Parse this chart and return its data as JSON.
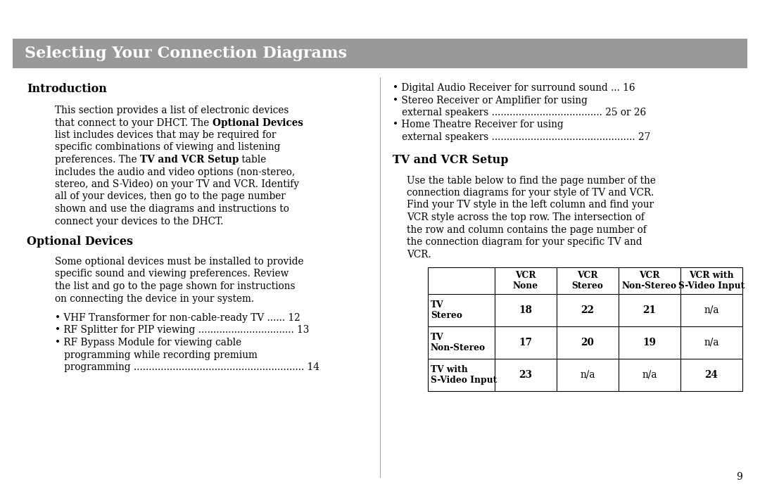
{
  "title": "Selecting Your Connection Diagrams",
  "title_bg": "#999999",
  "title_color": "#ffffff",
  "page_bg": "#ffffff",
  "page_number": "9",
  "intro_heading": "Introduction",
  "optional_heading": "Optional Devices",
  "tv_vcr_heading": "TV and VCR Setup",
  "intro_lines": [
    [
      [
        "This section provides a list of electronic devices",
        false
      ]
    ],
    [
      [
        "that connect to your DHCT. The ",
        false
      ],
      [
        "Optional Devices",
        true
      ]
    ],
    [
      [
        "list includes devices that may be required for",
        false
      ]
    ],
    [
      [
        "specific combinations of viewing and listening",
        false
      ]
    ],
    [
      [
        "preferences. The ",
        false
      ],
      [
        "TV and VCR Setup",
        true
      ],
      [
        " table",
        false
      ]
    ],
    [
      [
        "includes the audio and video options (non-stereo,",
        false
      ]
    ],
    [
      [
        "stereo, and S-Video) on your TV and VCR. Identify",
        false
      ]
    ],
    [
      [
        "all of your devices, then go to the page number",
        false
      ]
    ],
    [
      [
        "shown and use the diagrams and instructions to",
        false
      ]
    ],
    [
      [
        "connect your devices to the DHCT.",
        false
      ]
    ]
  ],
  "optional_body_lines": [
    "Some optional devices must be installed to provide",
    "specific sound and viewing preferences. Review",
    "the list and go to the page shown for instructions",
    "on connecting the device in your system."
  ],
  "left_bullets": [
    [
      "• VHF Transformer for non-cable-ready TV ...... 12"
    ],
    [
      "• RF Splitter for PIP viewing ................................ 13"
    ],
    [
      "• RF Bypass Module for viewing cable"
    ],
    [
      "   programming while recording premium"
    ],
    [
      "   programming ......................................................... 14"
    ]
  ],
  "right_bullets": [
    "• Digital Audio Receiver for surround sound ... 16",
    "• Stereo Receiver or Amplifier for using",
    "   external speakers ..................................... 25 or 26",
    "• Home Theatre Receiver for using",
    "   external speakers ................................................ 27"
  ],
  "tv_vcr_body_lines": [
    "Use the table below to find the page number of the",
    "connection diagrams for your style of TV and VCR.",
    "Find your TV style in the left column and find your",
    "VCR style across the top row. The intersection of",
    "the row and column contains the page number of",
    "the connection diagram for your specific TV and",
    "VCR."
  ],
  "table_col_headers": [
    "VCR\nNone",
    "VCR\nStereo",
    "VCR\nNon-Stereo",
    "VCR with\nS-Video Input"
  ],
  "table_row_headers": [
    "TV\nStereo",
    "TV\nNon-Stereo",
    "TV with\nS-Video Input"
  ],
  "table_data": [
    [
      "18",
      "22",
      "21",
      "n/a"
    ],
    [
      "17",
      "20",
      "19",
      "n/a"
    ],
    [
      "23",
      "n/a",
      "n/a",
      "24"
    ]
  ]
}
